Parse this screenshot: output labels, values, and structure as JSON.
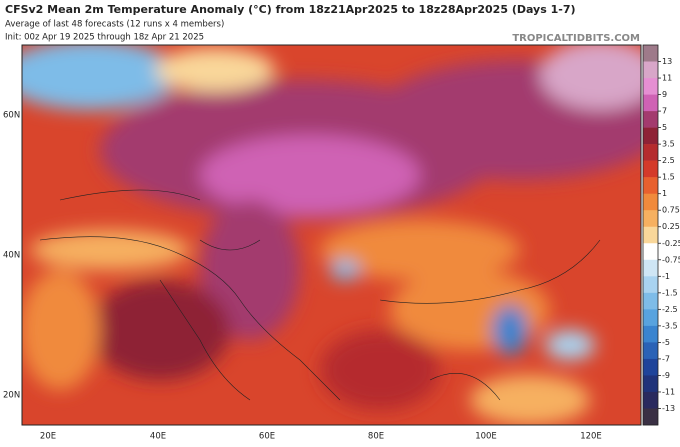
{
  "header": {
    "title": "CFSv2 Mean 2m Temperature Anomaly (°C) from 18z21Apr2025 to 18z28Apr2025 (Days 1-7)",
    "subtitle": "Average of last 48 forecasts (12 runs x 4 members)",
    "init": "Init: 00z Apr 19 2025 through 18z Apr 21 2025",
    "source": "TROPICALTIDBITS.COM"
  },
  "map": {
    "latitude_labels": [
      "60N",
      "40N",
      "20N"
    ],
    "longitude_labels": [
      "20E",
      "40E",
      "60E",
      "80E",
      "100E",
      "120E"
    ]
  },
  "colorbar": {
    "ticks": [
      13,
      11,
      9,
      7,
      5,
      3.5,
      2.5,
      1.5,
      1,
      0.75,
      0.25,
      -0.25,
      -0.75,
      -1,
      -1.5,
      -2.5,
      -3.5,
      -5,
      -7,
      -9,
      -11,
      -13
    ],
    "colors": [
      "#9e7a8a",
      "#d8a6c8",
      "#e58fd2",
      "#cf62b4",
      "#a33a6e",
      "#8e2236",
      "#b52c2e",
      "#d43a2a",
      "#e8602e",
      "#f08a3c",
      "#f6b060",
      "#f9d79a",
      "#ffffff",
      "#cfe6f5",
      "#a9d3f0",
      "#7ebce8",
      "#58a3df",
      "#3a84cf",
      "#2a62b6",
      "#1f449a",
      "#20337a",
      "#2a2a5e",
      "#3a3044"
    ]
  }
}
